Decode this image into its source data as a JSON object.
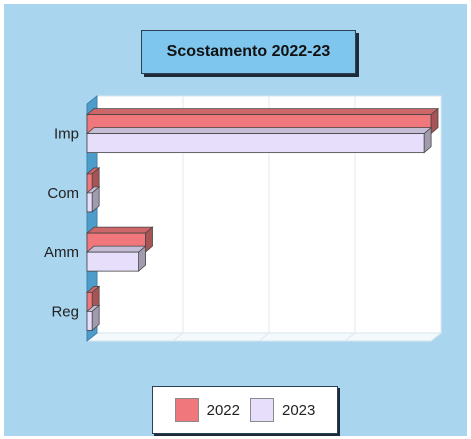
{
  "chart_data": {
    "type": "bar",
    "orientation": "horizontal",
    "title": "Scostamento 2022-23",
    "categories": [
      "Imp",
      "Com",
      "Amm",
      "Reg"
    ],
    "series": [
      {
        "name": "2022",
        "color": "#f0787c",
        "values": [
          100,
          1.5,
          17,
          1.5
        ]
      },
      {
        "name": "2023",
        "color": "#e6defa",
        "values": [
          98,
          1.5,
          15,
          1.5
        ]
      }
    ],
    "xlim": [
      0,
      100
    ],
    "grid": true,
    "legend_position": "bottom"
  }
}
